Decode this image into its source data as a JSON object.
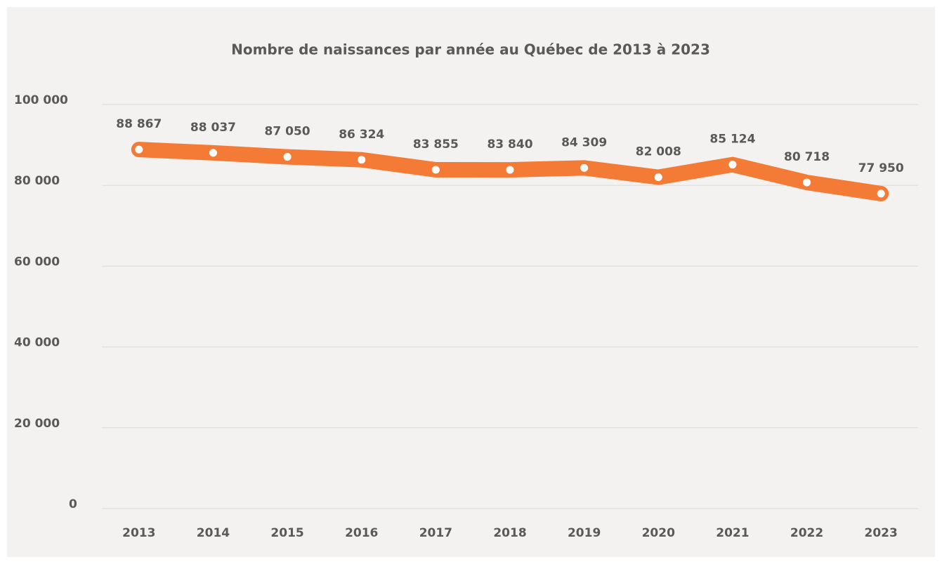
{
  "chart_data": {
    "type": "line",
    "title": "Nombre de naissances par année au Québec de 2013 à 2023",
    "categories": [
      "2013",
      "2014",
      "2015",
      "2016",
      "2017",
      "2018",
      "2019",
      "2020",
      "2021",
      "2022",
      "2023"
    ],
    "series": [
      {
        "color": "#f47b35",
        "values": [
          88867,
          88037,
          87050,
          86324,
          83855,
          83840,
          84309,
          82008,
          85124,
          80718,
          77950
        ],
        "value_labels": [
          "88 867",
          "88 037",
          "87 050",
          "86 324",
          "83 855",
          "83 840",
          "84 309",
          "82 008",
          "85 124",
          "80 718",
          "77 950"
        ]
      }
    ],
    "ylim": [
      0,
      100000
    ],
    "yticks": [
      0,
      {
        "value": 20000,
        "label": "20 000"
      },
      {
        "value": 40000,
        "label": "40 000"
      },
      {
        "value": 60000,
        "label": "60 000"
      },
      {
        "value": 80000,
        "label": "80 000"
      },
      {
        "value": 100000,
        "label": "100 000"
      }
    ],
    "grid": true
  }
}
